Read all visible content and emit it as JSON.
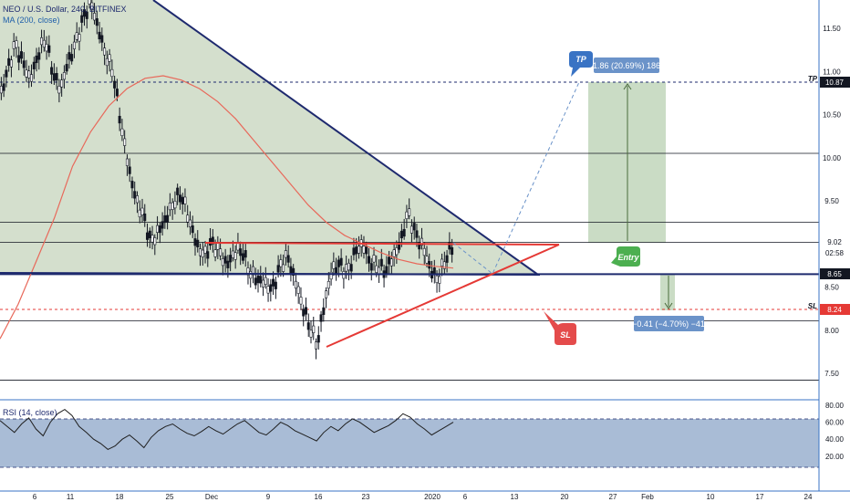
{
  "header": {
    "symbol_line": "NEO / U.S. Dollar, 240, BITFINEX",
    "ma_label": "MA (200, close)"
  },
  "rsi_label": "RSI (14, close)",
  "chart_data": {
    "type": "candlestick",
    "title": "NEO / U.S. Dollar, 240, BITFINEX",
    "x_tick_labels": [
      "6",
      "11",
      "18",
      "25",
      "Dec",
      "9",
      "16",
      "23",
      "2020",
      "6",
      "13",
      "20",
      "27",
      "Feb",
      "10",
      "17",
      "24"
    ],
    "price_axis_ticks": [
      "11.50",
      "11.00",
      "10.50",
      "10.00",
      "9.50",
      "9.00",
      "8.50",
      "8.00",
      "7.50"
    ],
    "ylim": [
      7.2,
      11.9
    ],
    "price_markers": [
      {
        "label": "10.87",
        "tag": "TP",
        "color": "#131722",
        "text_color": "#ffffff"
      },
      {
        "label": "9.02",
        "color": "#ffffff",
        "text_color": "#131722"
      },
      {
        "label": "02:58",
        "color": "#ffffff",
        "text_color": "#131722"
      },
      {
        "label": "8.65",
        "color": "#131722",
        "text_color": "#ffffff"
      },
      {
        "label": "8.24",
        "tag": "SL",
        "color": "#e53935",
        "text_color": "#ffffff"
      }
    ],
    "horizontal_levels": [
      10.87,
      10.05,
      9.25,
      9.02,
      8.65,
      8.11,
      7.42
    ],
    "price_series": [
      10.7,
      11.0,
      11.3,
      11.1,
      10.9,
      11.2,
      11.4,
      11.0,
      10.8,
      11.1,
      11.3,
      11.6,
      11.8,
      11.5,
      11.2,
      11.0,
      10.4,
      9.9,
      9.5,
      9.3,
      9.0,
      9.15,
      9.3,
      9.5,
      9.6,
      9.3,
      9.0,
      8.85,
      9.0,
      8.9,
      8.75,
      8.9,
      8.95,
      8.7,
      8.6,
      8.55,
      8.45,
      8.7,
      8.85,
      8.6,
      8.3,
      8.05,
      7.85,
      8.35,
      8.7,
      8.75,
      8.65,
      8.9,
      9.0,
      8.8,
      8.75,
      8.7,
      8.85,
      9.0,
      9.35,
      9.1,
      8.95,
      8.7,
      8.6,
      8.85,
      9.0
    ],
    "ma200_series": [
      7.9,
      8.3,
      8.8,
      9.3,
      9.9,
      10.3,
      10.6,
      10.8,
      10.92,
      10.95,
      10.9,
      10.8,
      10.65,
      10.45,
      10.2,
      9.95,
      9.7,
      9.45,
      9.25,
      9.1,
      9.0,
      8.9,
      8.82,
      8.77,
      8.74,
      8.72
    ],
    "rsi": {
      "label": "RSI (14, close)",
      "axis_ticks": [
        "80.00",
        "60.00",
        "40.00",
        "20.00"
      ],
      "ylim": [
        15,
        85
      ],
      "upper_band": 70,
      "lower_band": 30,
      "values": [
        62,
        55,
        48,
        58,
        65,
        52,
        44,
        60,
        70,
        75,
        68,
        55,
        48,
        40,
        35,
        28,
        32,
        40,
        45,
        38,
        30,
        42,
        50,
        55,
        58,
        52,
        47,
        44,
        49,
        55,
        50,
        46,
        52,
        58,
        62,
        55,
        48,
        45,
        52,
        60,
        56,
        50,
        46,
        42,
        38,
        48,
        55,
        50,
        58,
        64,
        60,
        54,
        48,
        52,
        56,
        62,
        70,
        66,
        58,
        52,
        45,
        50,
        55,
        60
      ]
    },
    "annotations": {
      "tp_callout": "TP",
      "entry_callout": "Entry",
      "sl_callout": "SL",
      "long_position_text": "1.86 (20.69%) 186",
      "short_position_text": "−0.41 (−4.70%) −41"
    }
  },
  "colors": {
    "triangle_fill": "#cfdbc8",
    "trendline": "#1e2a6e",
    "support_line": "#e53935",
    "ma_line": "#e8685a",
    "tp_zone": "#cadcc5",
    "callout_blue": "#3973c4",
    "callout_red": "#e44b4b",
    "callout_green": "#4caf50",
    "info_box": "#6b93c9",
    "rsi_fill": "#a9bcd6"
  }
}
